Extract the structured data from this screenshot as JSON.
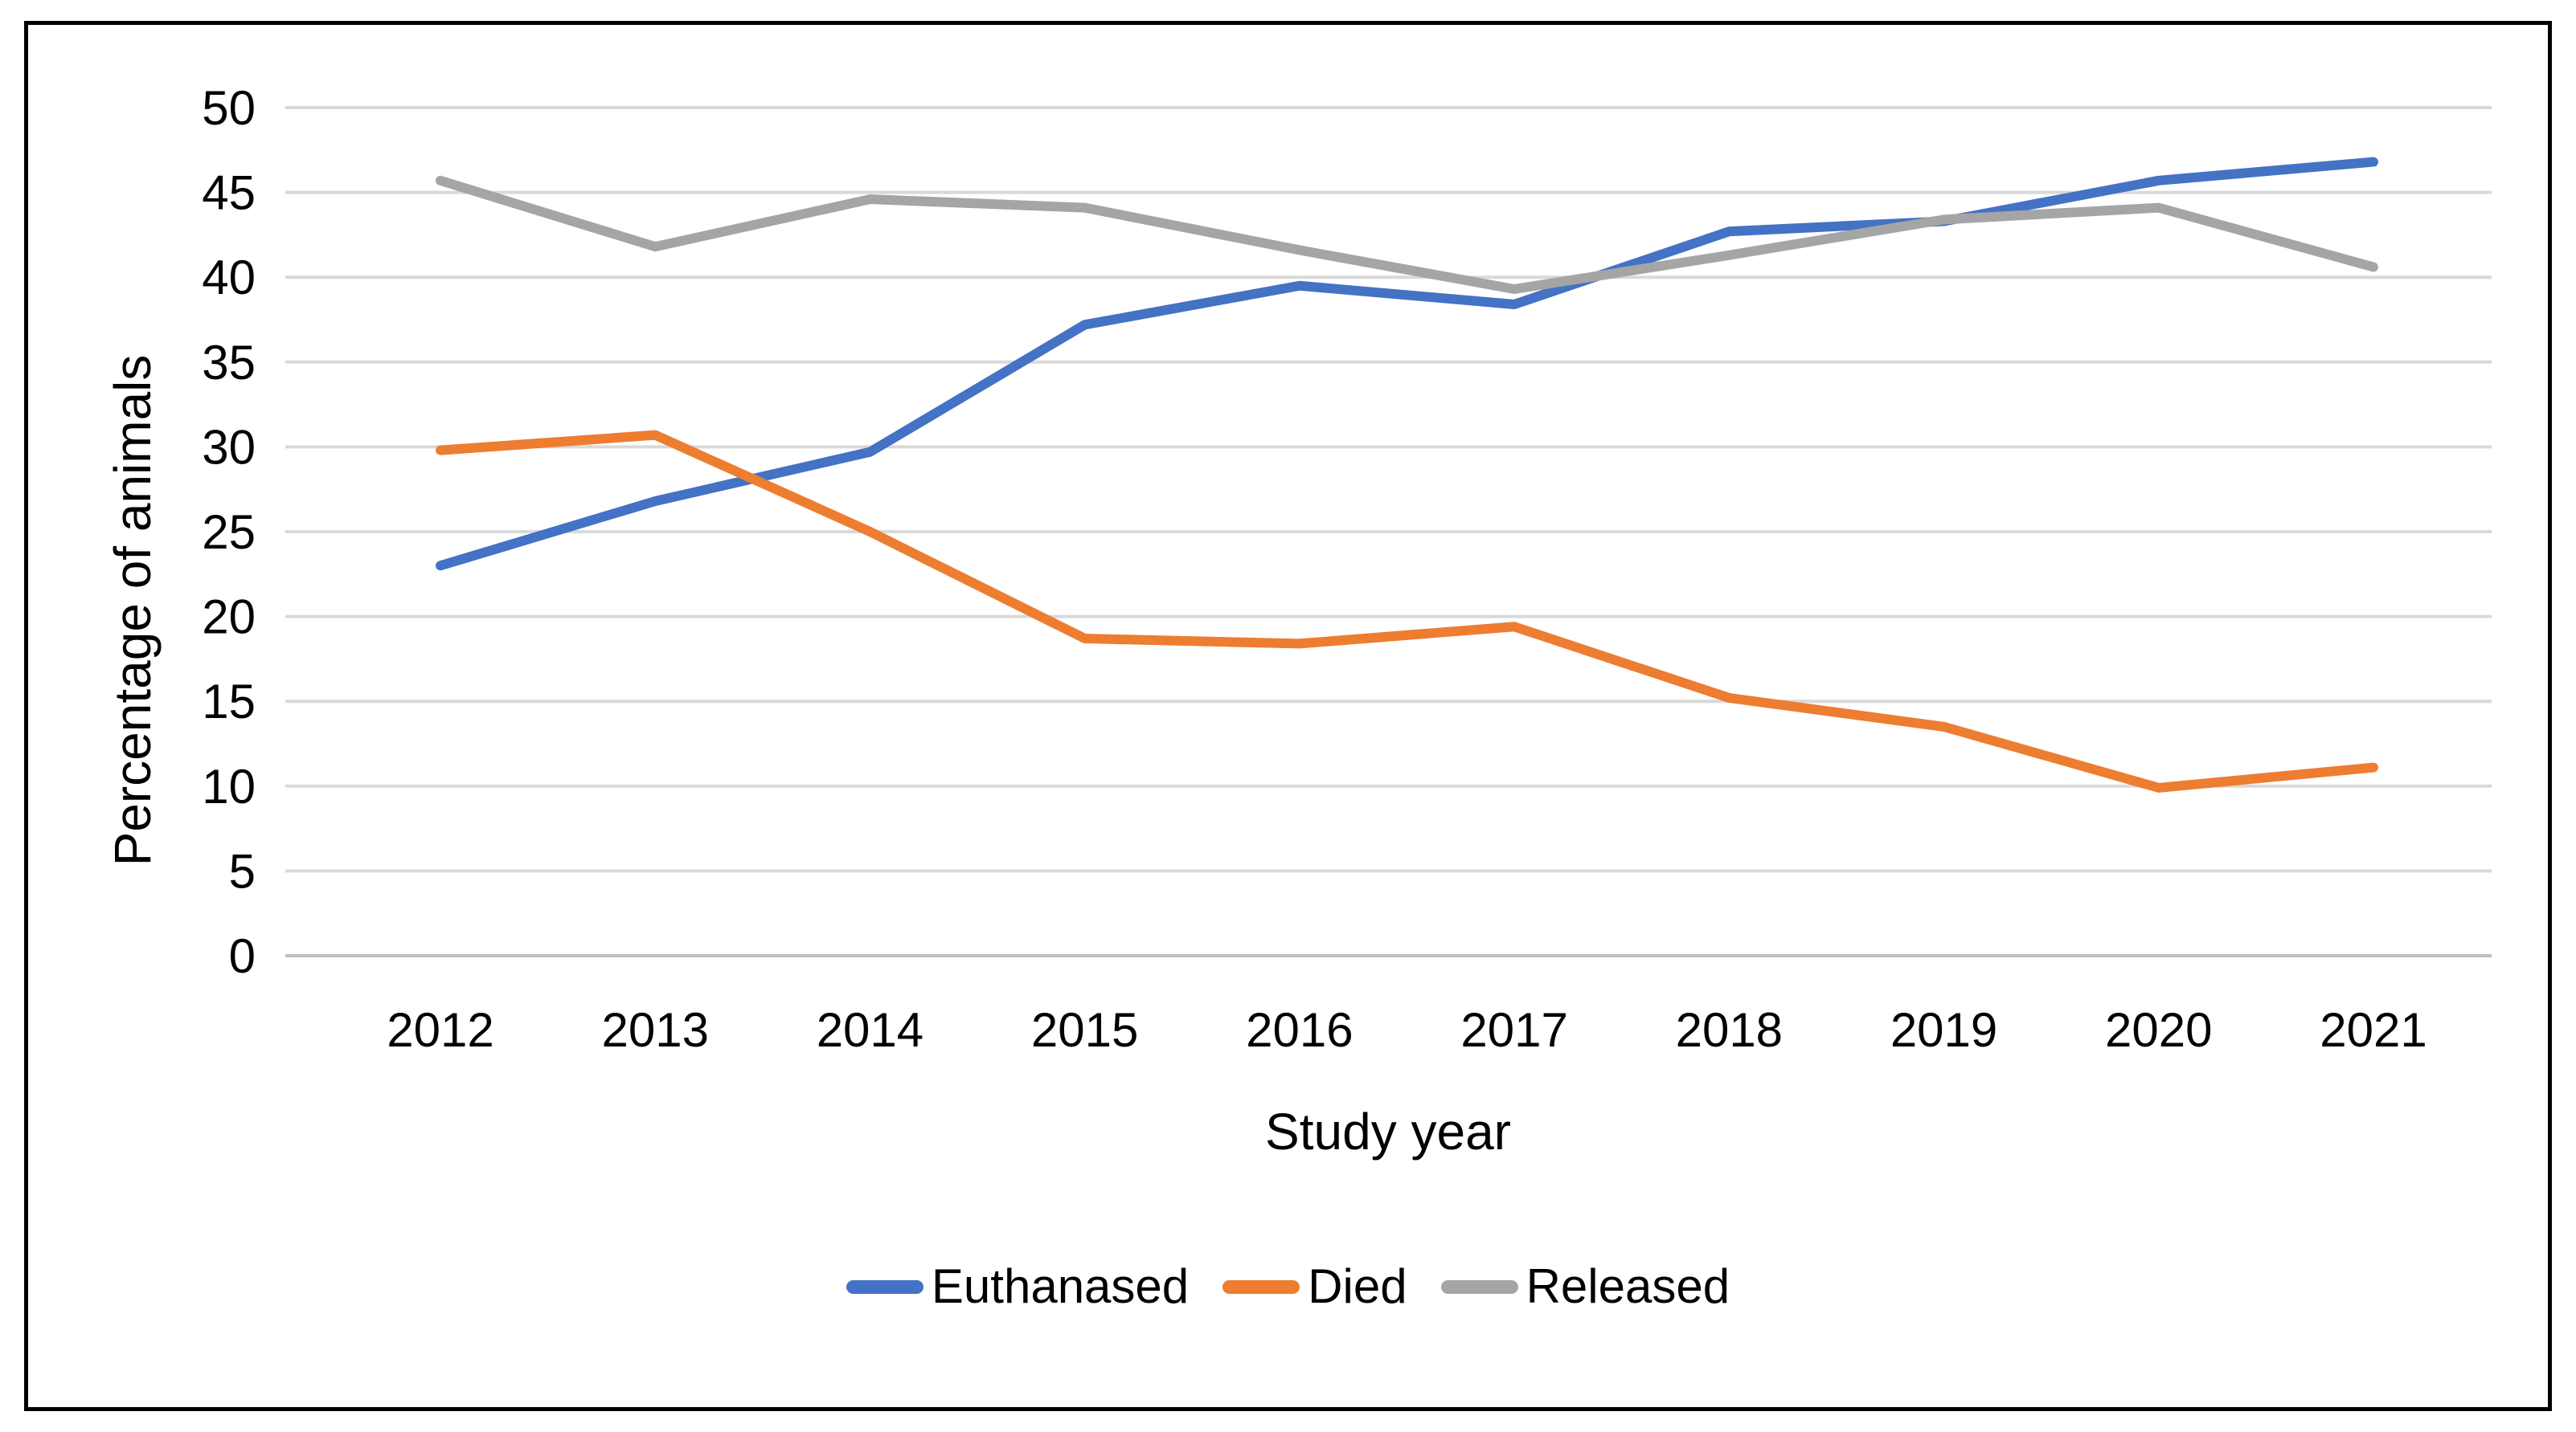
{
  "figure": {
    "background_color": "#FFFFFF",
    "border_color": "#000000",
    "gridline_color": "#D9D9D9",
    "axis_line_color": "#BFBFBF"
  },
  "chart_data": {
    "type": "line",
    "title": "",
    "xlabel": "Study year",
    "ylabel": "Percentage of animals",
    "categories": [
      "2012",
      "2013",
      "2014",
      "2015",
      "2016",
      "2017",
      "2018",
      "2019",
      "2020",
      "2021"
    ],
    "series": [
      {
        "name": "Euthanased",
        "color": "#4472C4",
        "values": [
          23.0,
          26.8,
          29.7,
          37.2,
          39.5,
          38.4,
          42.7,
          43.3,
          45.7,
          46.8
        ]
      },
      {
        "name": "Died",
        "color": "#ED7D31",
        "values": [
          29.8,
          30.7,
          25.0,
          18.7,
          18.4,
          19.4,
          15.2,
          13.5,
          9.9,
          11.1
        ]
      },
      {
        "name": "Released",
        "color": "#A5A5A5",
        "values": [
          45.7,
          41.8,
          44.6,
          44.1,
          41.6,
          39.3,
          41.3,
          43.4,
          44.1,
          40.6
        ]
      }
    ],
    "ylim": [
      0,
      50
    ],
    "yticks": [
      0,
      5,
      10,
      15,
      20,
      25,
      30,
      35,
      40,
      45,
      50
    ],
    "grid": true,
    "legend_position": "bottom",
    "legend_items": [
      "Euthanased",
      "Died",
      "Released"
    ]
  }
}
